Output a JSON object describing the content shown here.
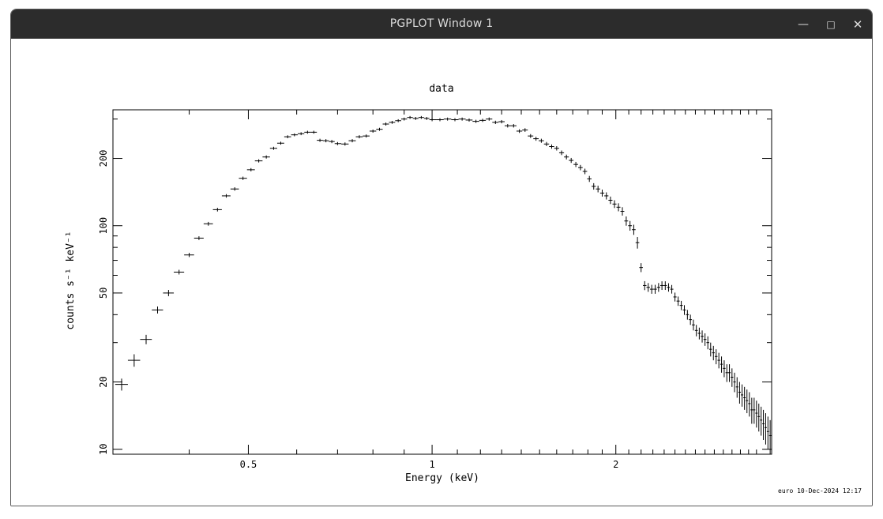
{
  "window": {
    "title": "PGPLOT Window 1",
    "minimize_icon": "minimize-icon",
    "maximize_icon": "maximize-icon",
    "close_icon": "close-icon"
  },
  "plot": {
    "footer": "euro 10-Dec-2024 12:17"
  },
  "chart_data": {
    "type": "scatter",
    "title": "data",
    "xlabel": "Energy (keV)",
    "ylabel": "counts s⁻¹ keV⁻¹",
    "x_scale": "log",
    "y_scale": "log",
    "xlim": [
      0.3,
      3.6
    ],
    "ylim": [
      9.5,
      330
    ],
    "xticks": [
      0.5,
      1,
      2
    ],
    "xtick_labels": [
      "0.5",
      "1",
      "2"
    ],
    "yticks": [
      10,
      20,
      50,
      100,
      200
    ],
    "ytick_labels": [
      "10",
      "20",
      "50",
      "100",
      "200"
    ],
    "grid": false,
    "series": [
      {
        "style": "crosses-with-error-bars",
        "color": "#000000",
        "x": [
          0.31,
          0.325,
          0.34,
          0.355,
          0.37,
          0.385,
          0.4,
          0.415,
          0.43,
          0.445,
          0.46,
          0.475,
          0.49,
          0.505,
          0.52,
          0.535,
          0.55,
          0.565,
          0.58,
          0.595,
          0.61,
          0.625,
          0.64,
          0.655,
          0.67,
          0.685,
          0.7,
          0.72,
          0.74,
          0.76,
          0.78,
          0.8,
          0.82,
          0.84,
          0.86,
          0.88,
          0.9,
          0.92,
          0.94,
          0.96,
          0.98,
          1.0,
          1.03,
          1.06,
          1.09,
          1.12,
          1.15,
          1.18,
          1.21,
          1.24,
          1.27,
          1.3,
          1.33,
          1.36,
          1.39,
          1.42,
          1.45,
          1.48,
          1.51,
          1.54,
          1.57,
          1.6,
          1.63,
          1.66,
          1.69,
          1.72,
          1.75,
          1.78,
          1.81,
          1.84,
          1.87,
          1.9,
          1.93,
          1.96,
          1.99,
          2.02,
          2.05,
          2.08,
          2.11,
          2.14,
          2.17,
          2.2,
          2.23,
          2.26,
          2.29,
          2.32,
          2.35,
          2.38,
          2.41,
          2.44,
          2.47,
          2.5,
          2.53,
          2.56,
          2.59,
          2.62,
          2.65,
          2.68,
          2.71,
          2.74,
          2.77,
          2.8,
          2.83,
          2.86,
          2.89,
          2.92,
          2.95,
          2.98,
          3.01,
          3.04,
          3.07,
          3.1,
          3.13,
          3.16,
          3.19,
          3.22,
          3.25,
          3.28,
          3.31,
          3.34,
          3.37,
          3.4,
          3.43,
          3.46,
          3.49,
          3.52,
          3.55,
          3.58
        ],
        "y": [
          19.5,
          25,
          31,
          42,
          50,
          62,
          74,
          88,
          102,
          118,
          136,
          146,
          163,
          178,
          195,
          203,
          222,
          234,
          250,
          255,
          258,
          262,
          262,
          241,
          240,
          238,
          233,
          232,
          240,
          250,
          252,
          265,
          270,
          285,
          290,
          295,
          300,
          305,
          302,
          305,
          302,
          298,
          298,
          300,
          298,
          300,
          297,
          293,
          296,
          300,
          290,
          292,
          280,
          280,
          265,
          268,
          252,
          245,
          240,
          232,
          226,
          222,
          212,
          203,
          196,
          188,
          182,
          175,
          162,
          150,
          146,
          140,
          136,
          130,
          125,
          121,
          116,
          105,
          100,
          96,
          84,
          65,
          54,
          53,
          52,
          52,
          53,
          54,
          54,
          53,
          52,
          48,
          46,
          44,
          42,
          40,
          38,
          36,
          34,
          33,
          32,
          31,
          30,
          28,
          27,
          26,
          25,
          24,
          23,
          22,
          22,
          21,
          20,
          19,
          18,
          17.5,
          17,
          16.5,
          16,
          15,
          15,
          14.5,
          14,
          13.5,
          13,
          12.5,
          12,
          11.5
        ],
        "yerr": [
          1.2,
          1.6,
          1.5,
          1.5,
          1.6,
          1.5,
          1.6,
          1.7,
          2,
          2.2,
          2.5,
          2.6,
          2.8,
          3,
          3.2,
          3.3,
          3.5,
          3.6,
          3.8,
          3.8,
          3.9,
          4,
          4,
          3.9,
          3.9,
          3.9,
          3.8,
          3.8,
          3.9,
          4,
          4,
          4.2,
          4.2,
          4.4,
          4.4,
          4.5,
          4.5,
          4.6,
          4.6,
          4.6,
          4.6,
          4.6,
          4.6,
          4.7,
          4.7,
          4.8,
          4.8,
          4.8,
          4.9,
          5,
          5,
          5,
          5,
          5,
          5,
          5,
          5,
          5,
          5,
          5,
          5,
          5,
          5,
          5,
          5,
          5,
          5,
          5,
          5,
          5,
          5,
          5,
          5,
          5,
          5,
          5,
          5,
          5,
          5,
          5,
          5,
          3,
          2.5,
          2.4,
          2.4,
          2.4,
          2.4,
          2.4,
          2.4,
          2.3,
          2.3,
          2.2,
          2.2,
          2.1,
          2.1,
          2,
          2,
          2,
          2,
          2,
          2,
          2,
          2,
          2,
          2,
          2,
          2,
          2,
          2,
          2,
          2,
          2,
          2,
          2,
          2,
          2,
          2,
          2,
          2,
          2,
          2,
          2,
          2,
          2,
          2,
          2,
          2,
          2
        ]
      }
    ]
  }
}
